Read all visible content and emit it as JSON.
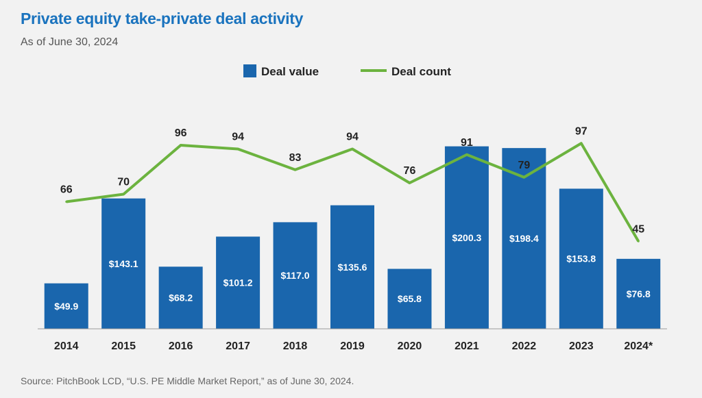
{
  "title": "Private equity take-private deal activity",
  "subtitle": "As of June 30, 2024",
  "source": "Source: PitchBook LCD, “U.S. PE Middle Market Report,” as of June 30, 2024.",
  "colors": {
    "title": "#1a73be",
    "bar": "#1a66ad",
    "line": "#6cb33f",
    "background": "#f2f2f2"
  },
  "chart_data": {
    "type": "bar",
    "title": "Private equity take-private deal activity",
    "subtitle": "As of June 30, 2024",
    "categories": [
      "2014",
      "2015",
      "2016",
      "2017",
      "2018",
      "2019",
      "2020",
      "2021",
      "2022",
      "2023",
      "2024*"
    ],
    "series": [
      {
        "name": "Deal value",
        "type": "bar",
        "values": [
          49.9,
          143.1,
          68.2,
          101.2,
          117.0,
          135.6,
          65.8,
          200.3,
          198.4,
          153.8,
          76.8
        ],
        "labels": [
          "$49.9",
          "$143.1",
          "$68.2",
          "$101.2",
          "$117.0",
          "$135.6",
          "$65.8",
          "$200.3",
          "$198.4",
          "$153.8",
          "$76.8"
        ]
      },
      {
        "name": "Deal count",
        "type": "line",
        "values": [
          66,
          70,
          96,
          94,
          83,
          94,
          76,
          91,
          79,
          97,
          45
        ],
        "labels": [
          "66",
          "70",
          "96",
          "94",
          "83",
          "94",
          "76",
          "91",
          "79",
          "97",
          "45"
        ]
      }
    ],
    "legend": {
      "position": "top-center",
      "entries": [
        "Deal value",
        "Deal count"
      ]
    },
    "grid": false
  }
}
